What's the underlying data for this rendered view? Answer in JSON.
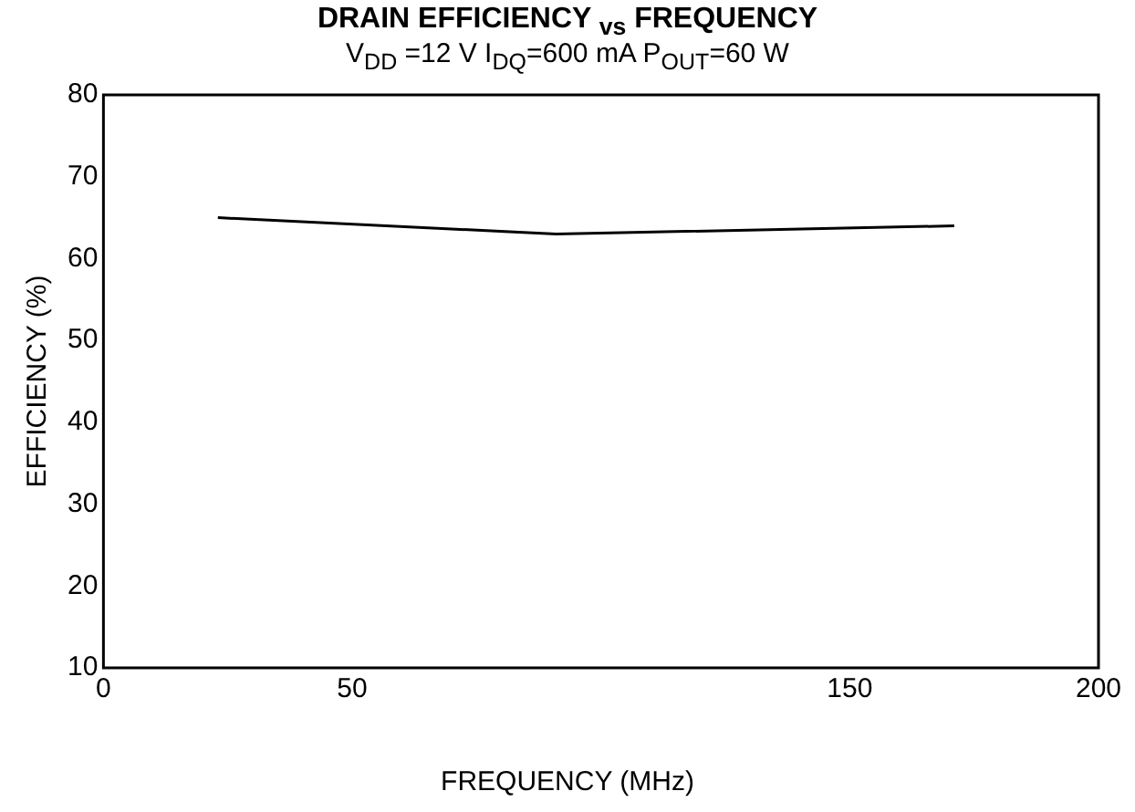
{
  "chart_data": {
    "type": "line",
    "title": "DRAIN EFFICIENCY $_{vs}$ FREQUENCY",
    "subtitle": "V$_{DD}$ =12 V I$_{DQ}$=600 mA P$_{OUT}$=60 W",
    "xlabel": "FREQUENCY (MHz)",
    "ylabel": "EFFICIENCY (%)",
    "x": [
      23,
      91,
      171
    ],
    "series": [
      {
        "color": "#000000",
        "values": [
          65,
          63,
          64
        ]
      }
    ],
    "xlim": [
      0,
      200
    ],
    "xticks": [
      0,
      50,
      150,
      200
    ],
    "ylim": [
      10,
      80
    ],
    "yticks": [
      10,
      20,
      30,
      40,
      50,
      60,
      70,
      80
    ],
    "grid": false,
    "legend": false,
    "marker": "none",
    "line_style": "solid"
  }
}
